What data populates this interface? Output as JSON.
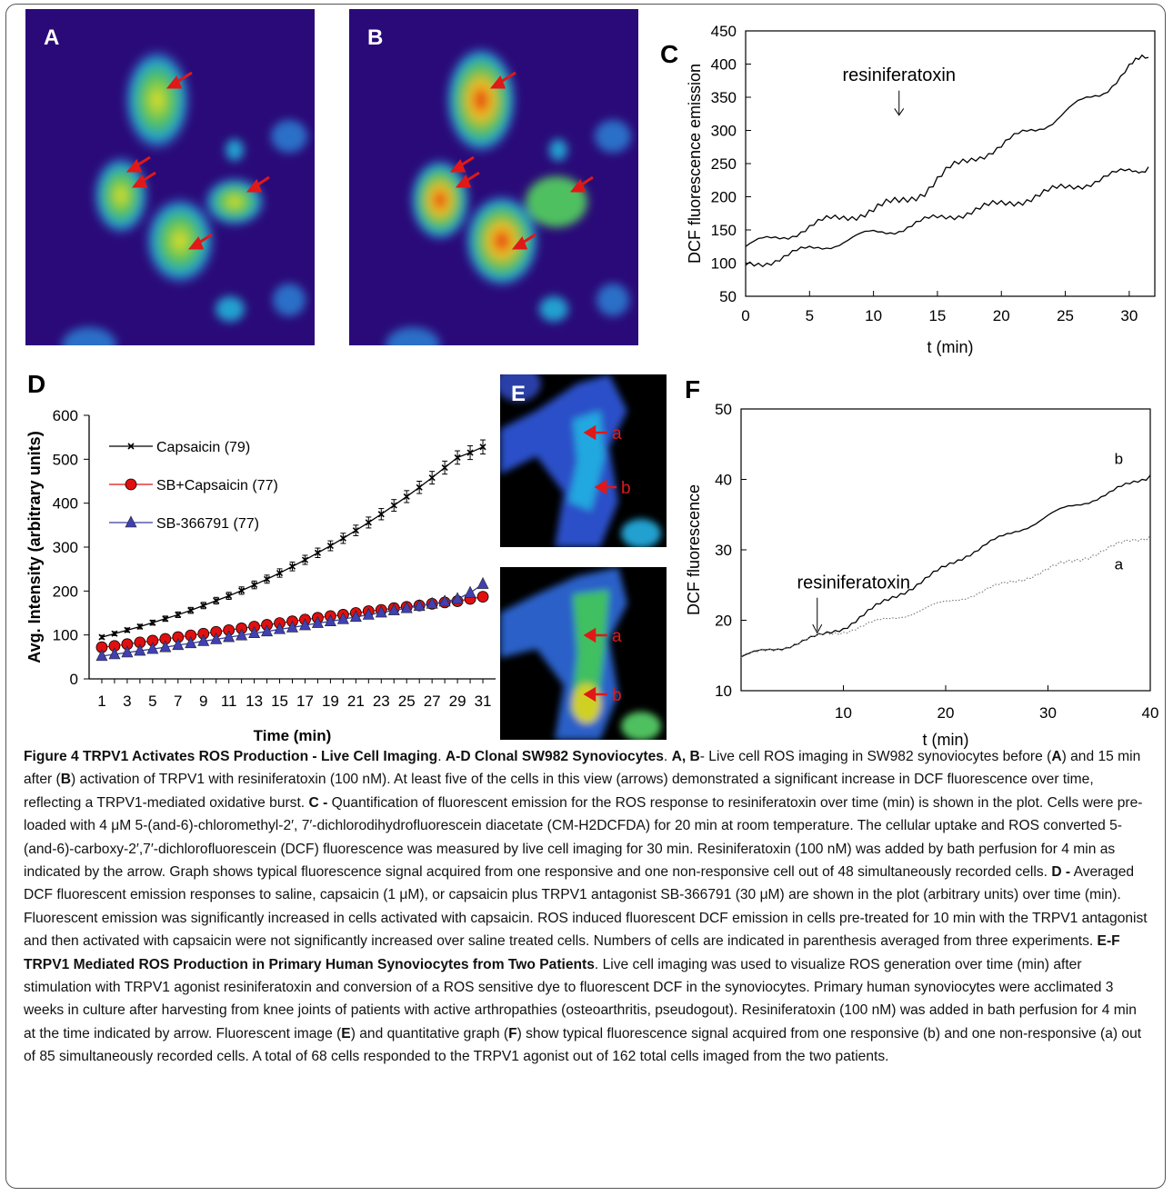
{
  "panels": {
    "A": {
      "label": "A"
    },
    "B": {
      "label": "B"
    },
    "C": {
      "label": "C"
    },
    "D": {
      "label": "D"
    },
    "E": {
      "label": "E"
    },
    "F": {
      "label": "F"
    }
  },
  "chart_data": [
    {
      "panel": "C",
      "type": "line",
      "xlabel": "t (min)",
      "ylabel": "DCF fluorescence emission",
      "xlim": [
        0,
        32
      ],
      "ylim": [
        50,
        450
      ],
      "xticks": [
        0,
        5,
        10,
        15,
        20,
        25,
        30
      ],
      "yticks": [
        50,
        100,
        150,
        200,
        250,
        300,
        350,
        400,
        450
      ],
      "annotation": "resiniferatoxin",
      "annotation_x": 12,
      "series": [
        {
          "x": [
            0,
            2,
            4,
            6,
            8,
            10,
            12,
            14,
            16,
            18,
            20,
            22,
            24,
            26,
            28,
            30,
            31.5
          ],
          "y": [
            125,
            135,
            148,
            160,
            172,
            180,
            192,
            210,
            240,
            262,
            275,
            298,
            315,
            338,
            360,
            395,
            410
          ]
        },
        {
          "x": [
            0,
            2,
            4,
            6,
            8,
            10,
            12,
            14,
            16,
            18,
            20,
            22,
            24,
            26,
            28,
            30,
            31.5
          ],
          "y": [
            95,
            105,
            115,
            125,
            135,
            145,
            152,
            162,
            172,
            180,
            188,
            198,
            208,
            218,
            228,
            238,
            245
          ]
        }
      ]
    },
    {
      "panel": "D",
      "type": "line",
      "xlabel": "Time (min)",
      "ylabel": "Avg. Intensity (arbitrary units)",
      "xlim": [
        0,
        32
      ],
      "ylim": [
        0,
        600
      ],
      "xticks": [
        1,
        3,
        5,
        7,
        9,
        11,
        13,
        15,
        17,
        19,
        21,
        23,
        25,
        27,
        29,
        31
      ],
      "yticks": [
        0,
        100,
        200,
        300,
        400,
        500,
        600
      ],
      "series": [
        {
          "name": "Capsaicin (79)",
          "color": "#000000",
          "marker": "x",
          "y": [
            95,
            103,
            111,
            119,
            128,
            137,
            146,
            156,
            167,
            178,
            189,
            201,
            214,
            227,
            241,
            256,
            271,
            287,
            303,
            320,
            338,
            356,
            375,
            395,
            415,
            436,
            458,
            481,
            504,
            515,
            528
          ]
        },
        {
          "name": "SB+Capsaicin (77)",
          "color": "#e01010",
          "marker": "circle",
          "y": [
            72,
            75,
            79,
            83,
            87,
            91,
            95,
            99,
            103,
            107,
            111,
            115,
            119,
            123,
            127,
            131,
            135,
            139,
            143,
            146,
            150,
            154,
            157,
            161,
            164,
            167,
            171,
            174,
            177,
            182,
            187
          ]
        },
        {
          "name": "SB-366791 (77)",
          "color": "#3a3aa0",
          "marker": "triangle",
          "y": [
            52,
            56,
            60,
            64,
            68,
            72,
            77,
            81,
            86,
            90,
            95,
            99,
            104,
            108,
            113,
            117,
            122,
            127,
            131,
            136,
            141,
            146,
            151,
            156,
            161,
            166,
            171,
            176,
            182,
            196,
            216
          ]
        }
      ]
    },
    {
      "panel": "F",
      "type": "line",
      "xlabel": "t (min)",
      "ylabel": "DCF fluorescence",
      "xlim": [
        0,
        40
      ],
      "ylim": [
        10,
        50
      ],
      "xticks": [
        10,
        20,
        30,
        40
      ],
      "yticks": [
        10,
        20,
        30,
        40,
        50
      ],
      "annotation": "resiniferatoxin",
      "annotation_x": 7,
      "series": [
        {
          "name": "b",
          "style": "solid",
          "x": [
            0,
            2,
            4,
            6,
            8,
            10,
            12,
            14,
            16,
            18,
            20,
            22,
            24,
            26,
            28,
            30,
            32,
            34,
            36,
            38,
            40
          ],
          "y": [
            14.8,
            15.5,
            16.2,
            17.0,
            17.8,
            19.0,
            20.8,
            22.5,
            24.2,
            25.8,
            27.5,
            29.3,
            30.8,
            32.0,
            33.4,
            34.8,
            36.0,
            37.0,
            38.0,
            39.3,
            40.6
          ]
        },
        {
          "name": "a",
          "style": "dotted",
          "x": [
            0,
            2,
            4,
            6,
            8,
            10,
            12,
            14,
            16,
            18,
            20,
            22,
            24,
            26,
            28,
            30,
            32,
            34,
            36,
            38,
            40
          ],
          "y": [
            14.8,
            15.5,
            16.2,
            17.0,
            17.8,
            18.5,
            19.2,
            20.0,
            20.8,
            21.6,
            22.5,
            23.4,
            24.3,
            25.2,
            26.2,
            27.2,
            28.2,
            29.2,
            30.2,
            31.2,
            32.0
          ]
        }
      ]
    }
  ],
  "panelE": {
    "arrow_labels": [
      "a",
      "b",
      "a",
      "b"
    ]
  },
  "caption": {
    "fig": "Figure 4 TRPV1 Activates ROS Production - Live Cell Imaging",
    "s1": ". ",
    "h1": "A-D Clonal SW982 Synoviocytes",
    "s2": ". ",
    "h2": "A, B",
    "t1": "- Live cell ROS imaging in SW982 synoviocytes before (",
    "bA": "A",
    "t2": ") and 15 min after (",
    "bB": "B",
    "t3": ") activation of TRPV1 with resiniferatoxin (100 nM). At least five of the cells in this view (arrows) demonstrated a significant increase in DCF fluorescence over time, reflecting a TRPV1-mediated oxidative burst. ",
    "h3": "C -",
    "t4": " Quantification of fluorescent emission for the ROS response to resiniferatoxin over time (min) is shown in the plot. Cells were pre-loaded with 4 μM 5-(and-6)-chloromethyl-2′, 7′-dichlorodihydrofluorescein diacetate (CM-H2DCFDA) for 20 min at room temperature. The cellular uptake and ROS converted 5-(and-6)-carboxy-2′,7′-dichlorofluorescein (DCF) fluorescence was measured by live cell imaging for 30 min. Resiniferatoxin (100 nM) was added by bath perfusion for 4 min as indicated by the arrow. Graph shows typical fluorescence signal acquired from one responsive and one non-responsive cell out of 48 simultaneously recorded cells. ",
    "h4": "D -",
    "t5": " Averaged DCF fluorescent emission responses to saline, capsaicin (1 μM), or capsaicin plus TRPV1 antagonist SB-366791 (30 μM) are shown in the plot (arbitrary units) over time (min). Fluorescent emission was significantly increased in cells activated with capsaicin. ROS induced fluorescent DCF emission in cells pre-treated for 10 min with the TRPV1 antagonist and then activated with capsaicin were not significantly increased over saline treated cells. Numbers of cells are indicated in parenthesis averaged from three experiments. ",
    "h5": "E-F TRPV1 Mediated ROS Production in Primary Human Synoviocytes from Two Patients",
    "t6": ". Live cell imaging was used to visualize ROS generation over time (min) after stimulation with TRPV1 agonist resiniferatoxin and conversion of a ROS sensitive dye to fluorescent DCF in the synoviocytes. Primary human synoviocytes were acclimated 3 weeks in culture after harvesting from knee joints of patients with active arthropathies (osteoarthritis, pseudogout). Resiniferatoxin (100 nM) was added in bath perfusion for 4 min at the time indicated by arrow. Fluorescent image (",
    "bE": "E",
    "t7": ") and quantitative graph (",
    "bF": "F",
    "t8": ") show typical fluorescence signal acquired from one responsive (b) and one non-responsive (a) out of 85 simultaneously recorded cells. A total of 68 cells responded to the TRPV1 agonist out of 162 total cells imaged from the two patients."
  }
}
